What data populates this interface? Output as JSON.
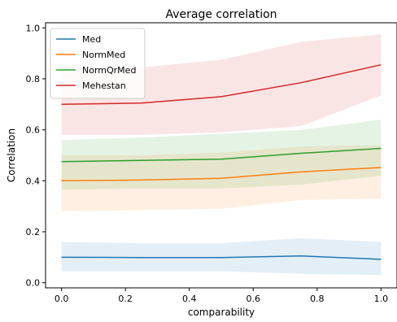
{
  "chart_data": {
    "type": "line",
    "title": "Average correlation",
    "xlabel": "comparability",
    "ylabel": "Correlation",
    "xlim": [
      -0.05,
      1.05
    ],
    "ylim": [
      -0.02,
      1.02
    ],
    "xticks": [
      "0.0",
      "0.2",
      "0.4",
      "0.6",
      "0.8",
      "1.0"
    ],
    "yticks": [
      "0.0",
      "0.2",
      "0.4",
      "0.6",
      "0.8",
      "1.0"
    ],
    "grid": false,
    "legend_position": "top-left",
    "x": [
      0.0,
      0.25,
      0.5,
      0.75,
      1.0
    ],
    "series": [
      {
        "name": "Med",
        "color": "#1f77b4",
        "values": [
          0.1,
          0.099,
          0.099,
          0.105,
          0.092
        ],
        "lower": [
          0.045,
          0.045,
          0.045,
          0.035,
          0.03
        ],
        "upper": [
          0.16,
          0.155,
          0.155,
          0.175,
          0.16
        ]
      },
      {
        "name": "NormMed",
        "color": "#ff7f0e",
        "values": [
          0.4,
          0.403,
          0.41,
          0.435,
          0.452
        ],
        "lower": [
          0.28,
          0.285,
          0.29,
          0.325,
          0.33
        ],
        "upper": [
          0.5,
          0.5,
          0.51,
          0.535,
          0.54
        ]
      },
      {
        "name": "NormQrMed",
        "color": "#2ca02c",
        "values": [
          0.475,
          0.48,
          0.485,
          0.508,
          0.527
        ],
        "lower": [
          0.365,
          0.37,
          0.37,
          0.385,
          0.42
        ],
        "upper": [
          0.56,
          0.57,
          0.585,
          0.6,
          0.64
        ]
      },
      {
        "name": "Mehestan",
        "color": "#d62728",
        "values": [
          0.7,
          0.705,
          0.73,
          0.785,
          0.855
        ],
        "lower": [
          0.58,
          0.58,
          0.59,
          0.615,
          0.735
        ],
        "upper": [
          0.82,
          0.845,
          0.875,
          0.945,
          0.975
        ]
      }
    ]
  }
}
